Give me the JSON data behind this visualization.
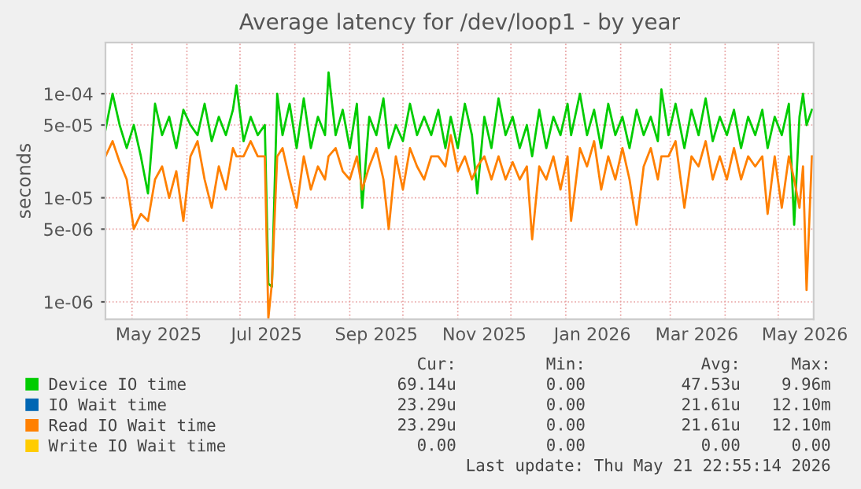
{
  "chart_data": {
    "type": "line",
    "title": "Average latency for /dev/loop1 - by year",
    "ylabel": "seconds",
    "x": [
      "2025-04-16",
      "2025-04-20",
      "2025-04-24",
      "2025-04-28",
      "2025-05-02",
      "2025-05-06",
      "2025-05-10",
      "2025-05-14",
      "2025-05-18",
      "2025-05-22",
      "2025-05-26",
      "2025-05-30",
      "2025-06-03",
      "2025-06-07",
      "2025-06-11",
      "2025-06-15",
      "2025-06-19",
      "2025-06-23",
      "2025-06-27",
      "2025-06-29",
      "2025-07-03",
      "2025-07-07",
      "2025-07-11",
      "2025-07-15",
      "2025-07-17",
      "2025-07-19",
      "2025-07-22",
      "2025-07-25",
      "2025-07-29",
      "2025-08-02",
      "2025-08-06",
      "2025-08-10",
      "2025-08-14",
      "2025-08-18",
      "2025-08-20",
      "2025-08-24",
      "2025-08-28",
      "2025-09-01",
      "2025-09-05",
      "2025-09-08",
      "2025-09-12",
      "2025-09-16",
      "2025-09-20",
      "2025-09-23",
      "2025-09-27",
      "2025-10-01",
      "2025-10-05",
      "2025-10-09",
      "2025-10-13",
      "2025-10-17",
      "2025-10-21",
      "2025-10-25",
      "2025-10-28",
      "2025-11-01",
      "2025-11-05",
      "2025-11-09",
      "2025-11-12",
      "2025-11-16",
      "2025-11-20",
      "2025-11-24",
      "2025-11-28",
      "2025-12-02",
      "2025-12-06",
      "2025-12-10",
      "2025-12-13",
      "2025-12-17",
      "2025-12-21",
      "2025-12-25",
      "2025-12-29",
      "2026-01-02",
      "2026-01-04",
      "2026-01-09",
      "2026-01-13",
      "2026-01-17",
      "2026-01-21",
      "2026-01-25",
      "2026-01-29",
      "2026-02-02",
      "2026-02-06",
      "2026-02-10",
      "2026-02-14",
      "2026-02-18",
      "2026-02-22",
      "2026-02-24",
      "2026-02-28",
      "2026-03-04",
      "2026-03-09",
      "2026-03-13",
      "2026-03-17",
      "2026-03-21",
      "2026-03-25",
      "2026-03-29",
      "2026-04-02",
      "2026-04-06",
      "2026-04-10",
      "2026-04-14",
      "2026-04-18",
      "2026-04-22",
      "2026-04-25",
      "2026-04-29",
      "2026-05-03",
      "2026-05-07",
      "2026-05-10",
      "2026-05-13",
      "2026-05-15",
      "2026-05-17",
      "2026-05-20"
    ],
    "series": [
      {
        "name": "Device IO time",
        "color": "#00cc00",
        "values": [
          4.5e-05,
          0.0001,
          5e-05,
          3e-05,
          5e-05,
          2.5e-05,
          1.1e-05,
          8e-05,
          4e-05,
          6e-05,
          3e-05,
          7e-05,
          5e-05,
          4e-05,
          8e-05,
          3.5e-05,
          6e-05,
          4e-05,
          7e-05,
          0.00012,
          3.5e-05,
          6e-05,
          4e-05,
          5e-05,
          1.5e-06,
          1.4e-06,
          0.0001,
          4e-05,
          8e-05,
          3e-05,
          9e-05,
          3e-05,
          6e-05,
          4e-05,
          0.00016,
          4e-05,
          7e-05,
          3e-05,
          8e-05,
          8e-06,
          6e-05,
          4e-05,
          9e-05,
          3e-05,
          5e-05,
          3.5e-05,
          8e-05,
          4e-05,
          6e-05,
          4e-05,
          7e-05,
          3e-05,
          6e-05,
          3e-05,
          8e-05,
          4e-05,
          1.1e-05,
          6e-05,
          3e-05,
          9e-05,
          4e-05,
          6e-05,
          3e-05,
          5e-05,
          2.5e-05,
          7e-05,
          3e-05,
          6e-05,
          4e-05,
          8e-05,
          4e-05,
          0.0001,
          4e-05,
          7e-05,
          3e-05,
          8e-05,
          4e-05,
          6e-05,
          3e-05,
          7e-05,
          4e-05,
          6e-05,
          3.5e-05,
          0.00011,
          4e-05,
          8e-05,
          3e-05,
          7e-05,
          4e-05,
          9e-05,
          3.5e-05,
          6e-05,
          4e-05,
          7e-05,
          3e-05,
          6e-05,
          4e-05,
          7e-05,
          3e-05,
          6e-05,
          4e-05,
          8e-05,
          5.5e-06,
          6e-05,
          0.0001,
          5e-05,
          7e-05
        ]
      },
      {
        "name": "IO Wait time",
        "color": "#0066b3",
        "values": [
          null,
          null,
          null,
          null,
          null,
          null,
          null,
          null,
          null,
          null,
          null,
          null,
          null,
          null,
          null,
          null,
          null,
          null,
          null,
          null,
          null,
          null,
          null,
          null,
          null,
          null,
          null,
          null,
          null,
          null,
          null,
          null,
          null,
          null,
          null,
          null,
          null,
          null,
          null,
          null,
          null,
          null,
          null,
          null,
          null,
          null,
          null,
          null,
          null,
          null,
          null,
          null,
          null,
          null,
          null,
          null,
          null,
          null,
          null,
          null,
          null,
          null,
          null,
          null,
          null,
          null,
          null,
          null,
          null,
          null,
          null,
          null,
          null,
          null,
          null,
          null,
          null,
          null,
          null,
          null,
          null,
          null,
          null,
          null,
          null,
          null,
          null,
          null,
          null,
          null,
          null,
          null,
          null,
          null,
          null,
          null,
          null,
          null,
          null,
          null,
          null,
          null,
          null,
          null,
          null,
          null,
          null
        ]
      },
      {
        "name": "Read IO Wait time",
        "color": "#ff8000",
        "values": [
          2.5e-05,
          3.5e-05,
          2.2e-05,
          1.5e-05,
          5e-06,
          7e-06,
          6e-06,
          1.5e-05,
          2e-05,
          1e-05,
          1.8e-05,
          6e-06,
          2.5e-05,
          3.5e-05,
          1.5e-05,
          8e-06,
          2e-05,
          1.2e-05,
          3e-05,
          2.5e-05,
          2.5e-05,
          3.5e-05,
          2.5e-05,
          2.5e-05,
          7e-07,
          1.5e-06,
          2.5e-05,
          3e-05,
          1.5e-05,
          8e-06,
          2.5e-05,
          1.2e-05,
          2e-05,
          1.5e-05,
          2.5e-05,
          3e-05,
          1.8e-05,
          1.5e-05,
          2.5e-05,
          1.2e-05,
          2e-05,
          3e-05,
          1.5e-05,
          5e-06,
          2.5e-05,
          1.2e-05,
          3e-05,
          2e-05,
          1.5e-05,
          2.5e-05,
          2.5e-05,
          2e-05,
          4e-05,
          1.8e-05,
          2.5e-05,
          1.5e-05,
          2e-05,
          2.5e-05,
          1.5e-05,
          2.5e-05,
          1.5e-05,
          2.2e-05,
          1.5e-05,
          2e-05,
          4e-06,
          2e-05,
          1.5e-05,
          2.5e-05,
          1.2e-05,
          2.5e-05,
          6e-06,
          3e-05,
          2e-05,
          3.5e-05,
          1.2e-05,
          2.5e-05,
          1.5e-05,
          3e-05,
          1.5e-05,
          5.5e-06,
          2e-05,
          3e-05,
          1.5e-05,
          2.5e-05,
          2.5e-05,
          3.5e-05,
          8e-06,
          2.5e-05,
          2e-05,
          3.5e-05,
          1.5e-05,
          2.5e-05,
          1.5e-05,
          3e-05,
          1.5e-05,
          2.5e-05,
          2e-05,
          2.5e-05,
          7e-06,
          2.5e-05,
          8e-06,
          2.5e-05,
          1.5e-05,
          8e-06,
          2e-05,
          1.3e-06,
          2.5e-05
        ]
      },
      {
        "name": "Write IO Wait time",
        "color": "#ffcc00",
        "values": [
          null,
          null,
          null,
          null,
          null,
          null,
          null,
          null,
          null,
          null,
          null,
          null,
          null,
          null,
          null,
          null,
          null,
          null,
          null,
          null,
          null,
          null,
          null,
          null,
          null,
          null,
          null,
          null,
          null,
          null,
          null,
          null,
          null,
          null,
          null,
          null,
          null,
          null,
          null,
          null,
          null,
          null,
          null,
          null,
          null,
          null,
          null,
          null,
          null,
          null,
          null,
          null,
          null,
          null,
          null,
          null,
          null,
          null,
          null,
          null,
          null,
          null,
          null,
          null,
          null,
          null,
          null,
          null,
          null,
          null,
          null,
          null,
          null,
          null,
          null,
          null,
          null,
          null,
          null,
          null,
          null,
          null,
          null,
          null,
          null,
          null,
          null,
          null,
          null,
          null,
          null,
          null,
          null,
          null,
          null,
          null,
          null,
          null,
          null,
          null,
          null,
          null,
          null,
          null,
          null,
          null,
          null
        ]
      }
    ],
    "log": "y",
    "xlim": [
      "2025-04-16",
      "2026-05-21"
    ],
    "xticks": [
      {
        "value": "2025-05-01",
        "label": null
      },
      {
        "value": "2025-05-16",
        "label": "May 2025"
      },
      {
        "value": "2025-06-01",
        "label": null
      },
      {
        "value": "2025-07-01",
        "label": null
      },
      {
        "value": "2025-07-16",
        "label": "Jul 2025"
      },
      {
        "value": "2025-08-01",
        "label": null
      },
      {
        "value": "2025-09-01",
        "label": null
      },
      {
        "value": "2025-09-16",
        "label": "Sep 2025"
      },
      {
        "value": "2025-10-01",
        "label": null
      },
      {
        "value": "2025-11-01",
        "label": null
      },
      {
        "value": "2025-11-16",
        "label": "Nov 2025"
      },
      {
        "value": "2025-12-01",
        "label": null
      },
      {
        "value": "2026-01-01",
        "label": null
      },
      {
        "value": "2026-01-16",
        "label": "Jan 2026"
      },
      {
        "value": "2026-02-01",
        "label": null
      },
      {
        "value": "2026-03-01",
        "label": null
      },
      {
        "value": "2026-03-16",
        "label": "Mar 2026"
      },
      {
        "value": "2026-04-01",
        "label": null
      },
      {
        "value": "2026-05-01",
        "label": null
      },
      {
        "value": "2026-05-16",
        "label": "May 2026"
      }
    ],
    "ylim": [
      6.8e-07,
      0.00031
    ],
    "yticks": [
      {
        "value": 1e-06,
        "label": "1e-06"
      },
      {
        "value": 5e-06,
        "label": "5e-06"
      },
      {
        "value": 1e-05,
        "label": "1e-05"
      },
      {
        "value": 5e-05,
        "label": "5e-05"
      },
      {
        "value": 0.0001,
        "label": "1e-04"
      }
    ],
    "grid": true,
    "legend": "bottom",
    "annotations": [
      "Cur:",
      "Min:",
      "Avg:",
      "Max:",
      "69.14u",
      "0.00",
      "47.53u",
      "9.96m",
      "23.29u",
      "0.00",
      "21.61u",
      "12.10m",
      "23.29u",
      "0.00",
      "21.61u",
      "12.10m",
      "0.00",
      "0.00",
      "0.00",
      "0.00",
      "Last update: Thu May 21 22:55:14 2026"
    ]
  }
}
